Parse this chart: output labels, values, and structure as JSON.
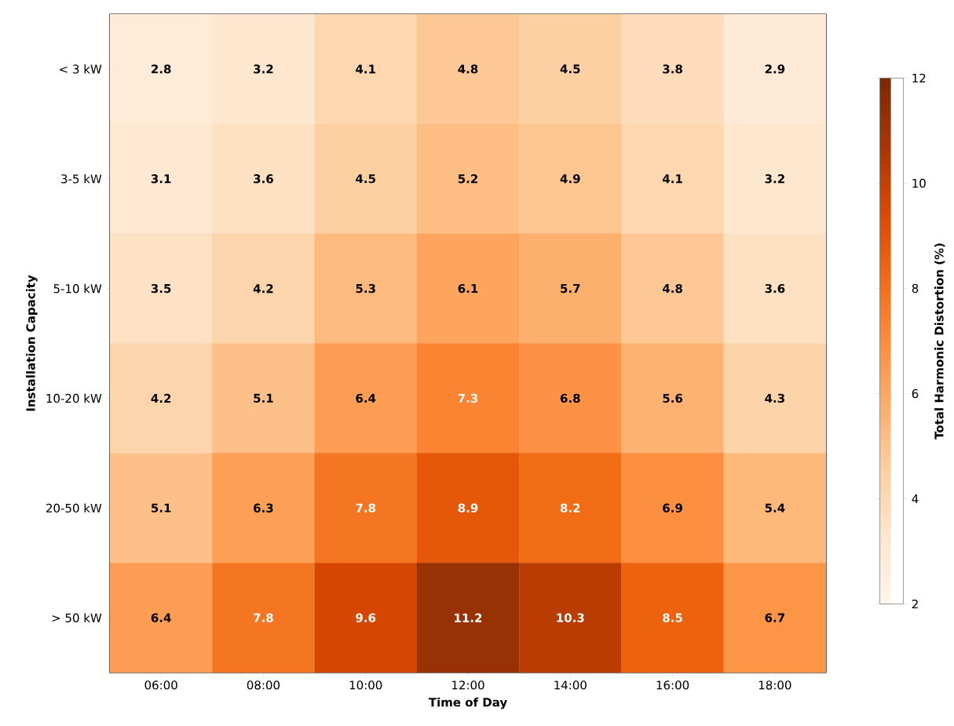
{
  "chart_data": {
    "type": "heatmap",
    "xlabel": "Time of Day",
    "ylabel": "Installation Capacity",
    "clabel": "Total Harmonic Distortion (%)",
    "categories": [
      "06:00",
      "08:00",
      "10:00",
      "12:00",
      "14:00",
      "16:00",
      "18:00"
    ],
    "y_categories": [
      "< 3 kW",
      "3-5 kW",
      "5-10 kW",
      "10-20 kW",
      "20-50 kW",
      "> 50 kW"
    ],
    "cells": [
      [
        2.8,
        3.2,
        4.1,
        4.8,
        4.5,
        3.8,
        2.9
      ],
      [
        3.1,
        3.6,
        4.5,
        5.2,
        4.9,
        4.1,
        3.2
      ],
      [
        3.5,
        4.2,
        5.3,
        6.1,
        5.7,
        4.8,
        3.6
      ],
      [
        4.2,
        5.1,
        6.4,
        7.3,
        6.8,
        5.6,
        4.3
      ],
      [
        5.1,
        6.3,
        7.8,
        8.9,
        8.2,
        6.9,
        5.4
      ],
      [
        6.4,
        7.8,
        9.6,
        11.2,
        10.3,
        8.5,
        6.7
      ]
    ],
    "data_labels": true,
    "clim": [
      2,
      12
    ],
    "cticks": [
      2,
      4,
      6,
      8,
      10,
      12
    ]
  }
}
